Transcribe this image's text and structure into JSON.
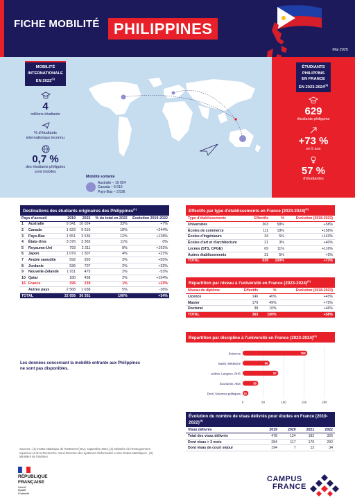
{
  "header": {
    "title_left": "FICHE MOBILITÉ",
    "title_country": "PHILIPPINES",
    "date": "Mai 2025"
  },
  "left_panel": {
    "label_line1": "MOBILITÉ",
    "label_line2": "INTERNATIONALE",
    "label_line3": "EN 2022",
    "label_sup": "(1)",
    "stat1_value": "4",
    "stat1_text": "millions étudiants",
    "stat2_text_line1": "% d'étudiants",
    "stat2_text_line2": "internationaux inconnu",
    "stat3_value": "0,7 %",
    "stat3_text_line1": "des étudiants philippins",
    "stat3_text_line2": "sont mobiles"
  },
  "right_panel": {
    "label_line1": "ÉTUDIANTS",
    "label_line2": "PHILIPPINS",
    "label_line3": "EN FRANCE",
    "label_line4": "EN 2023-2024",
    "label_sup": "(2)",
    "stat1_value": "629",
    "stat1_text": "étudiants philippins",
    "stat2_value": "+73 %",
    "stat2_text": "en 5 ans",
    "stat3_value": "57 %",
    "stat3_text": "d'étudiantes"
  },
  "mobilite_sortante": {
    "title": "Mobilité sortante",
    "line1": "Australie – 10 024",
    "line2": "Canada – 5 610",
    "line3": "Pays-Bas – 3 536"
  },
  "destinations": {
    "title": "Destinations des étudiants originaires des Philippines",
    "sup": "(1)",
    "headers": [
      "Pays d'accueil",
      "2019",
      "2022",
      "% du total en 2022",
      "Évolution 2019-2022"
    ],
    "rows": [
      [
        "1",
        "Australie",
        "9 341",
        "10 024",
        "33%",
        "+7%"
      ],
      [
        "2",
        "Canada",
        "1 629",
        "5 610",
        "18%",
        "+244%"
      ],
      [
        "3",
        "Pays-Bas",
        "1 551",
        "3 536",
        "12%",
        "+128%"
      ],
      [
        "4",
        "États-Unis",
        "3 376",
        "3 365",
        "11%",
        "0%"
      ],
      [
        "5",
        "Royaume-Uni",
        "793",
        "2 311",
        "8%",
        "+191%"
      ],
      [
        "6",
        "Japon",
        "1 079",
        "1 307",
        "4%",
        "+21%"
      ],
      [
        "7",
        "Arabie saoudite",
        "592",
        "920",
        "3%",
        "+55%"
      ],
      [
        "8",
        "Jordanie",
        "536",
        "707",
        "2%",
        "+32%"
      ],
      [
        "9",
        "Nouvelle-Zélande",
        "1 011",
        "475",
        "2%",
        "-53%"
      ],
      [
        "10",
        "Qatar",
        "180",
        "458",
        "2%",
        "+154%"
      ],
      [
        "16",
        "France",
        "195",
        "239",
        "1%",
        "+23%"
      ],
      [
        "",
        "Autres pays",
        "2 568",
        "1 638",
        "5%",
        "-36%"
      ]
    ],
    "total": [
      "TOTAL",
      "22 656",
      "30 351",
      "100%",
      "+34%"
    ]
  },
  "etablissements": {
    "title": "Effectifs par type d'établissements en France (2023-2024)",
    "sup": "(2)",
    "headers": [
      "Type d'établissements",
      "Effectifs",
      "%",
      "Évolution (2018-2023)"
    ],
    "rows": [
      [
        "Universités",
        "363",
        "58%",
        "+58%"
      ],
      [
        "Écoles de commerce",
        "111",
        "18%",
        "+158%"
      ],
      [
        "Écoles d'ingénieurs",
        "34",
        "5%",
        "+143%"
      ],
      [
        "Écoles d'art et d'architecture",
        "21",
        "3%",
        "+40%"
      ],
      [
        "Lycées (STS, CPGE)",
        "69",
        "11%",
        "+116%"
      ],
      [
        "Autres établissements",
        "31",
        "5%",
        "+3%"
      ]
    ],
    "total": [
      "TOTAL",
      "629",
      "100%",
      "+73%"
    ]
  },
  "diplome": {
    "title": "Répartition par niveau à l'université en France (2023-2024)",
    "sup": "(2)",
    "headers": [
      "Niveau de diplôme",
      "Effectifs",
      "%",
      "Évolution (2018-2023)"
    ],
    "rows": [
      [
        "Licence",
        "146",
        "40%",
        "+43%"
      ],
      [
        "Master",
        "179",
        "49%",
        "+75%"
      ],
      [
        "Doctorat",
        "38",
        "10%",
        "+46%"
      ]
    ],
    "total": [
      "TOTAL",
      "363",
      "100%",
      "+58%"
    ]
  },
  "chart_data": {
    "type": "bar",
    "orientation": "horizontal",
    "title": "Répartition par discipline à l'université en France (2023-2024)",
    "title_sup": "(2)",
    "categories": [
      "Sciences",
      "Santé, Médecine",
      "Lettres, Langues, SHS",
      "Économie, AES",
      "Droit, Sciences politiques"
    ],
    "values": [
      158,
      66,
      87,
      38,
      14
    ],
    "xlim": [
      0,
      200
    ],
    "xticks": [
      "0",
      "50",
      "100",
      "150",
      "200"
    ],
    "grid": true,
    "color": "#e7202a"
  },
  "visas": {
    "title": "Évolution du nombre de visas délivrés pour études en France (2019-2022)",
    "sup": "(3)",
    "headers": [
      "Visas délivrés",
      "2019",
      "2020",
      "2021",
      "2022"
    ],
    "rows": [
      [
        "Total des visas délivrés",
        "478",
        "124",
        "182",
        "326"
      ],
      [
        "Dont visas > 3 mois",
        "284",
        "117",
        "170",
        "292"
      ],
      [
        "Dont visas de court séjour",
        "194",
        "7",
        "12",
        "34"
      ]
    ]
  },
  "note": "Les données concernant la mobilité entrante aux Philippines ne sont pas disponibles.",
  "sources": "Sources : (1) Institut statistique de l'UNESCO (ISU), septembre 2024, (2) Ministère de l'Enseignement supérieur et de la Recherche, Sous-Direction des systèmes d'information et des études statistiques , (3) Ministère de l'Intérieur.",
  "footer": {
    "rf_line1": "RÉPUBLIQUE",
    "rf_line2": "FRANÇAISE",
    "rf_motto1": "Liberté",
    "rf_motto2": "Égalité",
    "rf_motto3": "Fraternité",
    "cf_line1": "CAMPUS",
    "cf_line2": "FRANCE"
  }
}
